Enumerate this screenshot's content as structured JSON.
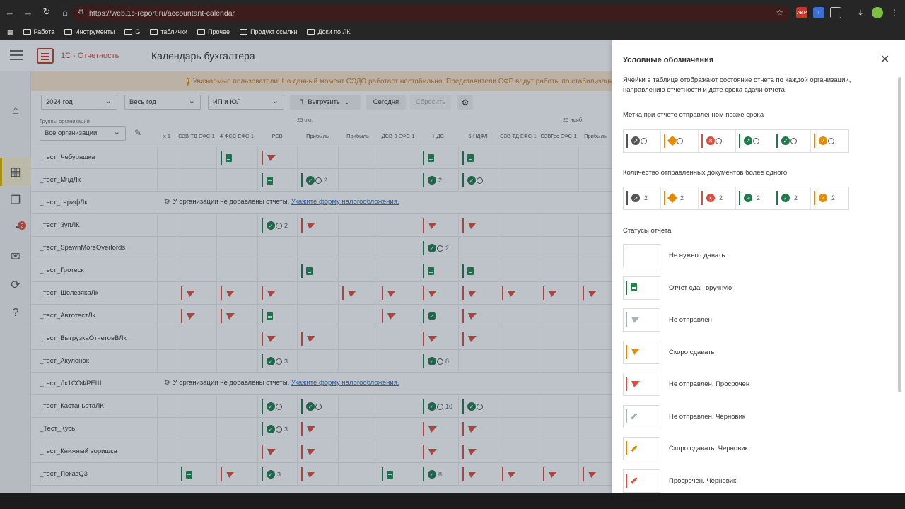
{
  "browser": {
    "url": "https://web.1c-report.ru/accountant-calendar",
    "bookmarks": [
      "Работа",
      "Инструменты",
      "G",
      "таблички",
      "Прочее",
      "Продукт ссылки",
      "Доки по ЛК"
    ],
    "ext_abp": "ABP"
  },
  "app": {
    "brand": "1С - Отчетность",
    "page_title": "Календарь бухгалтера",
    "banner": "Уважаемые пользователи! На данный момент СЭДО работает нестабильно. Представители СФР ведут работы по стабилизации, то",
    "sidebar_badge": "2",
    "colors": {
      "green": "#1e7a4a",
      "red": "#e04b3b",
      "orange": "#e68a00",
      "gray": "#aab0b8"
    }
  },
  "filters": {
    "year": "2024 год",
    "period": "Весь год",
    "type": "ИП и ЮЛ",
    "export": "Выгрузить",
    "today": "Сегодня",
    "reset": "Сбросить"
  },
  "grid": {
    "group_label": "Группы организаций",
    "group_value": "Все организации",
    "months": [
      "25 окт.",
      "25 нояб."
    ],
    "columns": [
      "х 1",
      "СЗВ-ТД ЕФС-1",
      "4-ФСС ЕФС-1",
      "РСВ",
      "Прибыль",
      "Прибыль",
      "ДСВ-3 ЕФС-1",
      "НДС",
      "6-НДФЛ",
      "СЗВ-ТД ЕФС-1",
      "СЗВГос ЕФС-1",
      "Прибыль"
    ],
    "no_reports_text": "У организации не добавлены отчеты.",
    "no_reports_link": "Укажите форму налогообложения.",
    "rows": [
      {
        "org": "_тест_Чебурашка",
        "cells": [
          "",
          "",
          "doc",
          "flag-red",
          "",
          "",
          "",
          "doc",
          "doc",
          "",
          "",
          ""
        ]
      },
      {
        "org": "_тест_МчдЛк",
        "cells": [
          "",
          "",
          "",
          "doc",
          "okclk:2",
          "",
          "",
          "ok:2",
          "okclk",
          "",
          "",
          ""
        ]
      },
      {
        "org": "_тест_тарифЛк",
        "noreports": true
      },
      {
        "org": "_тест_ЗупЛК",
        "cells": [
          "",
          "",
          "",
          "okclk:2",
          "flag-red",
          "",
          "",
          "flag-red",
          "flag-red",
          "",
          "",
          ""
        ]
      },
      {
        "org": "_тест_SpawnMoreOverlords",
        "cells": [
          "",
          "",
          "",
          "",
          "",
          "",
          "",
          "okclk:2",
          "",
          "",
          "",
          ""
        ]
      },
      {
        "org": "_тест_Гротеск",
        "cells": [
          "",
          "",
          "",
          "",
          "doc",
          "",
          "",
          "doc",
          "doc",
          "",
          "",
          ""
        ]
      },
      {
        "org": "_тест_ШелезякаЛк",
        "cells": [
          "",
          "flag-red",
          "flag-red",
          "flag-red",
          "",
          "flag-red",
          "flag-red",
          "flag-red",
          "flag-red",
          "flag-red",
          "flag-red",
          "flag-red"
        ]
      },
      {
        "org": "_тест_АвтотестЛк",
        "cells": [
          "",
          "flag-red",
          "flag-red",
          "doc",
          "",
          "",
          "flag-red",
          "ok",
          "flag-red",
          "",
          "",
          ""
        ]
      },
      {
        "org": "_тест_ВыгрузкаОтчетовВЛк",
        "cells": [
          "",
          "",
          "",
          "flag-red",
          "flag-red",
          "",
          "",
          "flag-red",
          "flag-red",
          "",
          "",
          ""
        ]
      },
      {
        "org": "_тест_Акуленок",
        "cells": [
          "",
          "",
          "",
          "okclk:3",
          "",
          "",
          "",
          "okclk:8",
          "",
          "",
          "",
          ""
        ]
      },
      {
        "org": "_тест_Лк1СОФРЕШ",
        "noreports": true
      },
      {
        "org": "_тест_КастаньетаЛК",
        "cells": [
          "",
          "",
          "",
          "okclk",
          "okclk",
          "",
          "",
          "okclk:10",
          "okclk",
          "",
          "",
          ""
        ]
      },
      {
        "org": "_Тест_Кусь",
        "cells": [
          "",
          "",
          "",
          "okclk:3",
          "flag-red",
          "",
          "",
          "flag-red",
          "flag-red",
          "",
          "",
          ""
        ]
      },
      {
        "org": "_тест_Книжный воришка",
        "cells": [
          "",
          "",
          "",
          "flag-red",
          "flag-red",
          "",
          "",
          "flag-red",
          "flag-red",
          "",
          "",
          ""
        ]
      },
      {
        "org": "_тест_ПоказQ3",
        "cells": [
          "",
          "doc",
          "flag-red",
          "ok:3",
          "flag-red",
          "",
          "doc",
          "ok:8",
          "flag-red",
          "flag-red",
          "flag-red",
          "flag-red"
        ]
      }
    ]
  },
  "legend": {
    "title": "Условные обозначения",
    "description": "Ячейки в таблице отображают состояние отчета по каждой организации, направлению отчетности и дате срока сдачи отчета.",
    "late_title": "Метка при отчете отправленном позже срока",
    "multi_title": "Количество отправленных документов более одного",
    "multi_count": "2",
    "statuses_title": "Статусы отчета",
    "statuses": [
      {
        "label": "Не нужно сдавать",
        "icon": "none"
      },
      {
        "label": "Отчет сдан вручную",
        "icon": "doc"
      },
      {
        "label": "Не отправлен",
        "icon": "flag-gray"
      },
      {
        "label": "Скоро сдавать",
        "icon": "flag-orange"
      },
      {
        "label": "Не отправлен. Просрочен",
        "icon": "flag-red"
      },
      {
        "label": "Не отправлен. Черновик",
        "icon": "pen-gray"
      },
      {
        "label": "Скоро сдавать. Черновик",
        "icon": "pen-orange"
      },
      {
        "label": "Просрочен. Черновик",
        "icon": "pen-red"
      }
    ]
  }
}
